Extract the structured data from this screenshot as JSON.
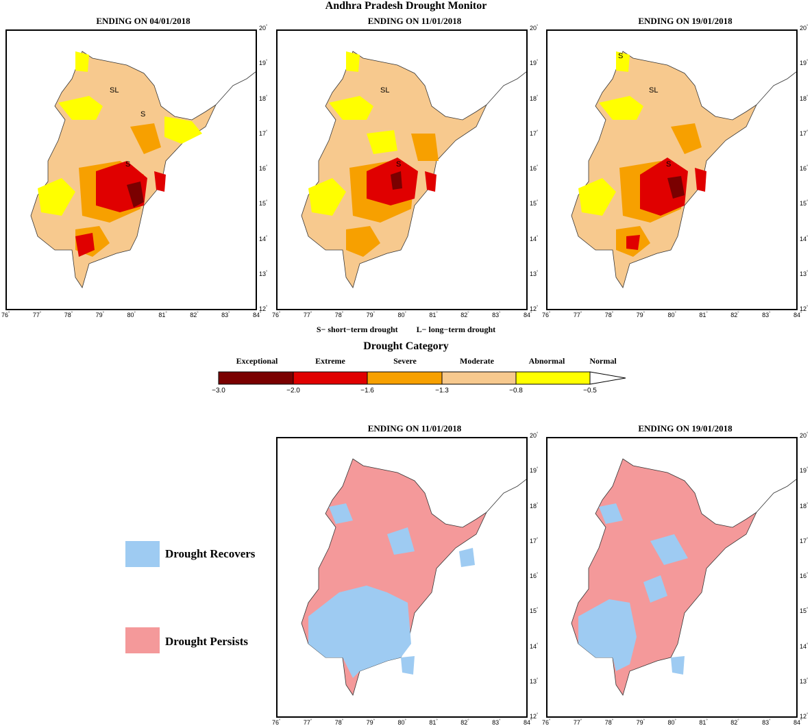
{
  "title": "Andhra Pradesh Drought Monitor",
  "top_panels": [
    {
      "title": "ENDING ON 04/01/2018"
    },
    {
      "title": "ENDING ON 11/01/2018"
    },
    {
      "title": "ENDING ON 19/01/2018"
    }
  ],
  "bottom_panels": [
    {
      "title": "ENDING ON 11/01/2018"
    },
    {
      "title": "ENDING ON 19/01/2018"
    }
  ],
  "axes": {
    "lon_ticks": [
      "76",
      "77",
      "78",
      "79",
      "80",
      "81",
      "82",
      "83",
      "84"
    ],
    "lat_ticks": [
      "12",
      "13",
      "14",
      "15",
      "16",
      "17",
      "18",
      "19",
      "20"
    ],
    "degree_symbol": "°"
  },
  "notes": {
    "short_term": "S− short−term drought",
    "long_term": "L− long−term drought"
  },
  "map_labels": {
    "S": "S",
    "SL": "SL"
  },
  "drought_category": {
    "title": "Drought Category",
    "categories": [
      {
        "label": "Exceptional",
        "color": "#7a0000"
      },
      {
        "label": "Extreme",
        "color": "#e00000"
      },
      {
        "label": "Severe",
        "color": "#f7a000"
      },
      {
        "label": "Moderate",
        "color": "#f7c98e"
      },
      {
        "label": "Abnormal",
        "color": "#ffff00"
      },
      {
        "label": "Normal",
        "color": "#ffffff"
      }
    ],
    "breaks": [
      "−3.0",
      "−2.0",
      "−1.6",
      "−1.3",
      "−0.8",
      "−0.5"
    ]
  },
  "change_legend": [
    {
      "label": "Drought Recovers",
      "color": "#9ecbf2"
    },
    {
      "label": "Drought Persists",
      "color": "#f4999a"
    }
  ]
}
